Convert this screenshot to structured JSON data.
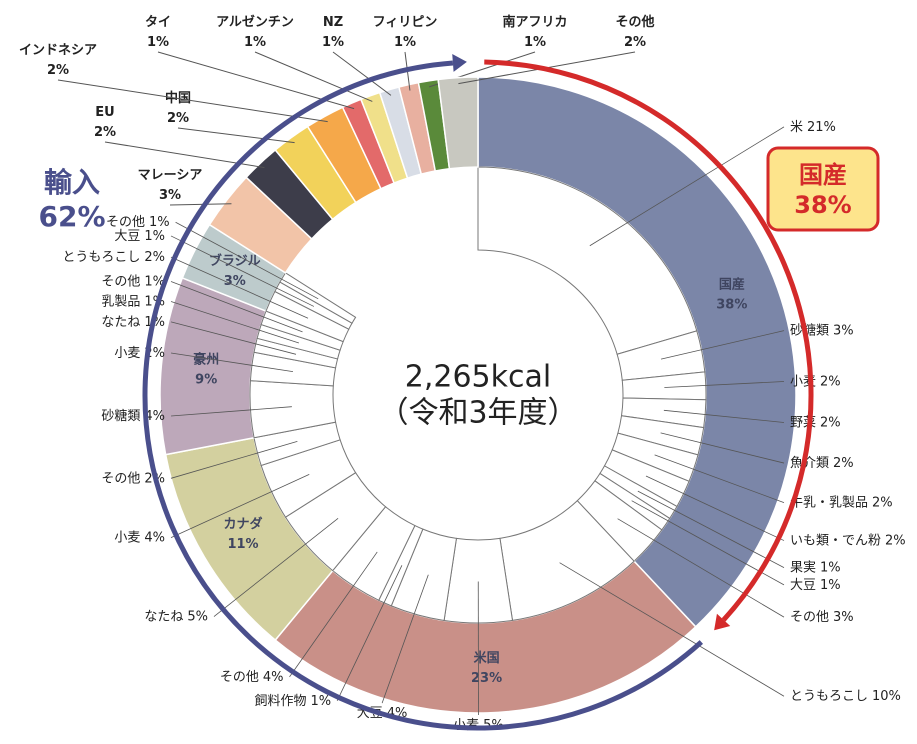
{
  "chart_data": {
    "type": "donut",
    "center_text": [
      "2,265kcal",
      "（令和3年度）"
    ],
    "annotations": [
      {
        "text": "国産",
        "value": 38,
        "label": "38%",
        "color": "#d42a2a"
      },
      {
        "text": "輸入",
        "value": 62,
        "label": "62%",
        "color": "#4a4f8c"
      }
    ],
    "segments": [
      {
        "name": "国産",
        "value": 38,
        "label": "38%",
        "color": "#7b86a8",
        "items": [
          {
            "name": "米",
            "value": 21,
            "label": "21%"
          },
          {
            "name": "砂糖類",
            "value": 3,
            "label": "3%"
          },
          {
            "name": "小麦",
            "value": 2,
            "label": "2%"
          },
          {
            "name": "野菜",
            "value": 2,
            "label": "2%"
          },
          {
            "name": "魚介類",
            "value": 2,
            "label": "2%"
          },
          {
            "name": "牛乳・乳製品",
            "value": 2,
            "label": "2%"
          },
          {
            "name": "いも類・でん粉",
            "value": 2,
            "label": "2%"
          },
          {
            "name": "果実",
            "value": 1,
            "label": "1%"
          },
          {
            "name": "大豆",
            "value": 1,
            "label": "1%"
          },
          {
            "name": "その他",
            "value": 3,
            "label": "3%"
          }
        ]
      },
      {
        "name": "米国",
        "value": 23,
        "label": "23%",
        "color": "#c99088",
        "items": [
          {
            "name": "とうもろこし",
            "value": 10,
            "label": "10%"
          },
          {
            "name": "小麦",
            "value": 5,
            "label": "5%"
          },
          {
            "name": "大豆",
            "value": 4,
            "label": "4%"
          },
          {
            "name": "飼料作物",
            "value": 1,
            "label": "1%"
          },
          {
            "name": "その他",
            "value": 4,
            "label": "4%"
          }
        ]
      },
      {
        "name": "カナダ",
        "value": 11,
        "label": "11%",
        "color": "#d3d09f",
        "items": [
          {
            "name": "なたね",
            "value": 5,
            "label": "5%"
          },
          {
            "name": "小麦",
            "value": 4,
            "label": "4%"
          },
          {
            "name": "その他",
            "value": 2,
            "label": "2%"
          }
        ]
      },
      {
        "name": "豪州",
        "value": 9,
        "label": "9%",
        "color": "#bda8ba",
        "items": [
          {
            "name": "砂糖類",
            "value": 4,
            "label": "4%"
          },
          {
            "name": "小麦",
            "value": 2,
            "label": "2%"
          },
          {
            "name": "なたね",
            "value": 1,
            "label": "1%"
          },
          {
            "name": "乳製品",
            "value": 1,
            "label": "1%"
          },
          {
            "name": "その他",
            "value": 1,
            "label": "1%"
          }
        ]
      },
      {
        "name": "ブラジル",
        "value": 3,
        "label": "3%",
        "color": "#bdcbcc",
        "items": [
          {
            "name": "とうもろこし",
            "value": 2,
            "label": "2%"
          },
          {
            "name": "大豆",
            "value": 1,
            "label": "1%"
          },
          {
            "name": "その他",
            "value": 1,
            "label": "1%"
          }
        ]
      },
      {
        "name": "マレーシア",
        "value": 3,
        "label": "3%",
        "color": "#f2c4a8"
      },
      {
        "name": "EU",
        "value": 2,
        "label": "2%",
        "color": "#3d3d4a"
      },
      {
        "name": "中国",
        "value": 2,
        "label": "2%",
        "color": "#f2d25a"
      },
      {
        "name": "インドネシア",
        "value": 2,
        "label": "2%",
        "color": "#f5a84a"
      },
      {
        "name": "タイ",
        "value": 1,
        "label": "1%",
        "color": "#e36a6a"
      },
      {
        "name": "アルゼンチン",
        "value": 1,
        "label": "1%",
        "color": "#f0e08a"
      },
      {
        "name": "NZ",
        "value": 1,
        "label": "1%",
        "color": "#d8dde6"
      },
      {
        "name": "フィリピン",
        "value": 1,
        "label": "1%",
        "color": "#e8b0a0"
      },
      {
        "name": "南アフリカ",
        "value": 1,
        "label": "1%",
        "color": "#5a8a3a"
      },
      {
        "name": "その他",
        "value": 2,
        "label": "2%",
        "color": "#c8c8c0"
      }
    ]
  }
}
